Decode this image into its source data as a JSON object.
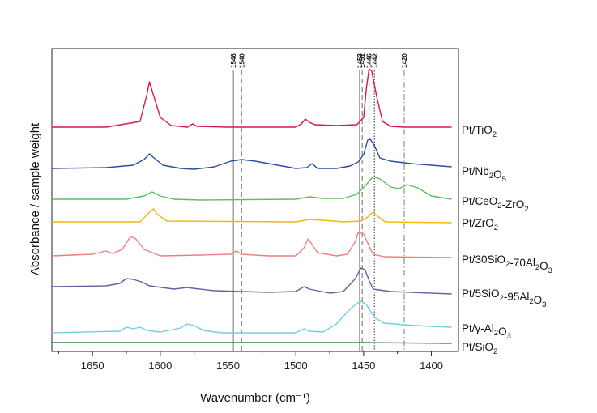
{
  "chart_data": {
    "type": "line",
    "title": "",
    "xlabel": "Wavenumber (cm⁻¹)",
    "ylabel": "Absorbance / sample weight",
    "x_reversed": true,
    "xlim": [
      1680,
      1380
    ],
    "xticks": [
      1650,
      1600,
      1550,
      1500,
      1450,
      1400
    ],
    "grid": false,
    "legend": "labels at right end of each spectrum",
    "reference_lines": [
      {
        "label": "1546",
        "x": 1546,
        "style": "solid",
        "color": "#a9a9a0"
      },
      {
        "label": "1540",
        "x": 1540,
        "style": "dashed",
        "color": "#8a8a8a"
      },
      {
        "label": "1453",
        "x": 1453,
        "style": "solid",
        "color": "#a9a9a0"
      },
      {
        "label": "1451",
        "x": 1451,
        "style": "dashed",
        "color": "#8a8a8a"
      },
      {
        "label": "1446",
        "x": 1446,
        "style": "dashdot",
        "color": "#9a9a9a"
      },
      {
        "label": "1442",
        "x": 1442,
        "style": "dotted",
        "color": "#555555"
      },
      {
        "label": "1420",
        "x": 1420,
        "style": "dashdot",
        "color": "#9a9a9a"
      }
    ],
    "series": [
      {
        "name": "Pt/TiO₂",
        "label_main": "Pt/TiO",
        "label_sub": "2",
        "label_rest": "",
        "label_sub2": "",
        "label_rest2": "",
        "color": "#d6194f",
        "label_y": 160,
        "points": [
          [
            1680,
            157
          ],
          [
            1640,
            157
          ],
          [
            1615,
            150
          ],
          [
            1610,
            118
          ],
          [
            1608,
            101
          ],
          [
            1606,
            112
          ],
          [
            1600,
            145
          ],
          [
            1592,
            155
          ],
          [
            1580,
            157
          ],
          [
            1576,
            153
          ],
          [
            1573,
            156
          ],
          [
            1550,
            157
          ],
          [
            1500,
            157
          ],
          [
            1496,
            153
          ],
          [
            1493,
            147
          ],
          [
            1490,
            151
          ],
          [
            1486,
            154
          ],
          [
            1470,
            155
          ],
          [
            1455,
            154
          ],
          [
            1450,
            145
          ],
          [
            1448,
            110
          ],
          [
            1446,
            85
          ],
          [
            1444,
            88
          ],
          [
            1440,
            122
          ],
          [
            1436,
            150
          ],
          [
            1430,
            156
          ],
          [
            1420,
            157
          ],
          [
            1385,
            157
          ]
        ]
      },
      {
        "name": "Pt/Nb₂O₅",
        "label_main": "Pt/Nb",
        "label_sub": "2",
        "label_rest": "O",
        "label_sub2": "5",
        "label_rest2": "",
        "color": "#2b4ea0",
        "label_y": 211,
        "points": [
          [
            1680,
            208
          ],
          [
            1640,
            207
          ],
          [
            1620,
            204
          ],
          [
            1612,
            197
          ],
          [
            1608,
            190
          ],
          [
            1604,
            196
          ],
          [
            1598,
            204
          ],
          [
            1585,
            208
          ],
          [
            1575,
            209
          ],
          [
            1560,
            206
          ],
          [
            1548,
            199
          ],
          [
            1540,
            197
          ],
          [
            1530,
            199
          ],
          [
            1500,
            208
          ],
          [
            1492,
            207
          ],
          [
            1488,
            202
          ],
          [
            1484,
            208
          ],
          [
            1470,
            208
          ],
          [
            1460,
            205
          ],
          [
            1454,
            200
          ],
          [
            1450,
            191
          ],
          [
            1447,
            173
          ],
          [
            1445,
            172
          ],
          [
            1442,
            180
          ],
          [
            1438,
            195
          ],
          [
            1430,
            199
          ],
          [
            1415,
            202
          ],
          [
            1400,
            204
          ],
          [
            1385,
            206
          ]
        ]
      },
      {
        "name": "Pt/CeO₂-ZrO₂",
        "label_main": "Pt/CeO",
        "label_sub": "2",
        "label_rest": "-ZrO",
        "label_sub2": "2",
        "label_rest2": "",
        "color": "#5cbf5c",
        "label_y": 248,
        "points": [
          [
            1680,
            246
          ],
          [
            1625,
            246
          ],
          [
            1612,
            242
          ],
          [
            1606,
            237
          ],
          [
            1600,
            242
          ],
          [
            1590,
            246
          ],
          [
            1570,
            247
          ],
          [
            1500,
            246
          ],
          [
            1490,
            243
          ],
          [
            1480,
            245
          ],
          [
            1465,
            245
          ],
          [
            1455,
            240
          ],
          [
            1448,
            228
          ],
          [
            1443,
            218
          ],
          [
            1438,
            221
          ],
          [
            1430,
            231
          ],
          [
            1424,
            233
          ],
          [
            1418,
            228
          ],
          [
            1410,
            232
          ],
          [
            1400,
            242
          ],
          [
            1385,
            246
          ]
        ]
      },
      {
        "name": "Pt/ZrO₂",
        "label_main": "Pt/ZrO",
        "label_sub": "2",
        "label_rest": "",
        "label_sub2": "",
        "label_rest2": "",
        "color": "#f2b70f",
        "label_y": 275,
        "points": [
          [
            1680,
            274
          ],
          [
            1615,
            274
          ],
          [
            1608,
            262
          ],
          [
            1605,
            258
          ],
          [
            1602,
            265
          ],
          [
            1595,
            273
          ],
          [
            1500,
            274
          ],
          [
            1490,
            271
          ],
          [
            1480,
            272
          ],
          [
            1465,
            274
          ],
          [
            1452,
            273
          ],
          [
            1447,
            268
          ],
          [
            1443,
            262
          ],
          [
            1439,
            268
          ],
          [
            1434,
            274
          ],
          [
            1385,
            275
          ]
        ]
      },
      {
        "name": "Pt/30SiO₂-70Al₂O₃",
        "label_main": "Pt/30SiO",
        "label_sub": "2",
        "label_rest": "-70Al",
        "label_sub2": "2",
        "label_rest2": "O₃",
        "color": "#ef7f7f",
        "label_y": 320,
        "points": [
          [
            1680,
            316
          ],
          [
            1650,
            314
          ],
          [
            1640,
            310
          ],
          [
            1635,
            313
          ],
          [
            1628,
            308
          ],
          [
            1622,
            292
          ],
          [
            1618,
            295
          ],
          [
            1612,
            308
          ],
          [
            1600,
            316
          ],
          [
            1570,
            315
          ],
          [
            1548,
            314
          ],
          [
            1544,
            310
          ],
          [
            1540,
            314
          ],
          [
            1520,
            316
          ],
          [
            1500,
            316
          ],
          [
            1494,
            306
          ],
          [
            1491,
            295
          ],
          [
            1488,
            302
          ],
          [
            1484,
            312
          ],
          [
            1470,
            316
          ],
          [
            1462,
            314
          ],
          [
            1456,
            298
          ],
          [
            1454,
            287
          ],
          [
            1450,
            289
          ],
          [
            1447,
            300
          ],
          [
            1443,
            314
          ],
          [
            1435,
            317
          ],
          [
            1385,
            318
          ]
        ]
      },
      {
        "name": "Pt/5SiO₂-95Al₂O₃",
        "label_main": "Pt/5SiO",
        "label_sub": "2",
        "label_rest": "-95Al",
        "label_sub2": "2",
        "label_rest2": "O₃",
        "color": "#735aa0",
        "label_y": 362,
        "points": [
          [
            1680,
            354
          ],
          [
            1640,
            353
          ],
          [
            1630,
            350
          ],
          [
            1625,
            344
          ],
          [
            1620,
            345
          ],
          [
            1614,
            348
          ],
          [
            1608,
            353
          ],
          [
            1590,
            357
          ],
          [
            1580,
            355
          ],
          [
            1576,
            356
          ],
          [
            1560,
            359
          ],
          [
            1520,
            361
          ],
          [
            1500,
            360
          ],
          [
            1494,
            354
          ],
          [
            1490,
            357
          ],
          [
            1475,
            362
          ],
          [
            1465,
            360
          ],
          [
            1456,
            344
          ],
          [
            1452,
            331
          ],
          [
            1449,
            333
          ],
          [
            1446,
            346
          ],
          [
            1443,
            357
          ],
          [
            1430,
            360
          ],
          [
            1385,
            363
          ]
        ]
      },
      {
        "name": "Pt/γ-Al₂O₃",
        "label_main": "Pt/γ-Al",
        "label_sub": "2",
        "label_rest": "O",
        "label_sub2": "3",
        "label_rest2": "",
        "color": "#79cde0",
        "label_y": 405,
        "points": [
          [
            1680,
            411
          ],
          [
            1630,
            409
          ],
          [
            1625,
            404
          ],
          [
            1620,
            406
          ],
          [
            1615,
            404
          ],
          [
            1610,
            408
          ],
          [
            1600,
            410
          ],
          [
            1585,
            405
          ],
          [
            1580,
            400
          ],
          [
            1575,
            402
          ],
          [
            1568,
            408
          ],
          [
            1555,
            411
          ],
          [
            1500,
            411
          ],
          [
            1494,
            406
          ],
          [
            1490,
            409
          ],
          [
            1480,
            410
          ],
          [
            1470,
            400
          ],
          [
            1462,
            385
          ],
          [
            1456,
            376
          ],
          [
            1452,
            372
          ],
          [
            1448,
            376
          ],
          [
            1442,
            392
          ],
          [
            1435,
            399
          ],
          [
            1420,
            401
          ],
          [
            1400,
            403
          ],
          [
            1385,
            404
          ]
        ]
      },
      {
        "name": "Pt/SiO₂",
        "label_main": "Pt/SiO",
        "label_sub": "2",
        "label_rest": "",
        "label_sub2": "",
        "label_rest2": "",
        "color": "#3a8a3a",
        "label_y": 428,
        "points": [
          [
            1680,
            423
          ],
          [
            1600,
            423
          ],
          [
            1500,
            423
          ],
          [
            1450,
            423
          ],
          [
            1385,
            424
          ]
        ]
      }
    ]
  }
}
